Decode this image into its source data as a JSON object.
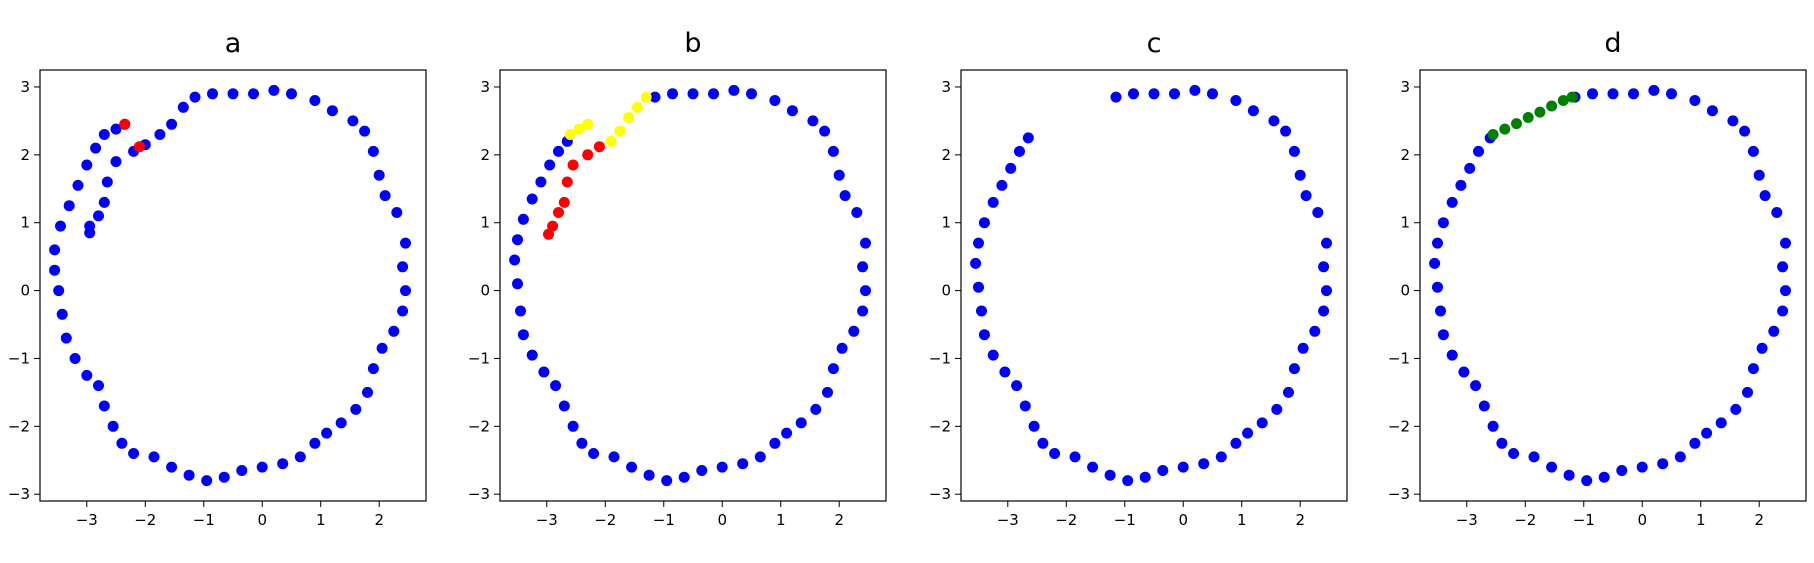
{
  "figure": {
    "background": "#ffffff"
  },
  "colors": {
    "blue": "#0000ff",
    "red": "#ff0000",
    "yellow": "#ffff00",
    "green": "#008000"
  },
  "chart_data": [
    {
      "type": "scatter",
      "title": "a",
      "xlabel": "",
      "ylabel": "",
      "xlim": [
        -3.8,
        2.8
      ],
      "ylim": [
        -3.1,
        3.25
      ],
      "xticks": [
        -3,
        -2,
        -1,
        0,
        1,
        2
      ],
      "yticks": [
        -3,
        -2,
        -1,
        0,
        1,
        2,
        3
      ],
      "series": [
        {
          "color": "#0000ff",
          "points": [
            [
              -2.35,
              2.45
            ],
            [
              -2.5,
              2.38
            ],
            [
              -2.7,
              2.3
            ],
            [
              -2.85,
              2.1
            ],
            [
              -3.0,
              1.85
            ],
            [
              -3.15,
              1.55
            ],
            [
              -3.3,
              1.25
            ],
            [
              -3.45,
              0.95
            ],
            [
              -3.55,
              0.6
            ],
            [
              -3.55,
              0.3
            ],
            [
              -3.48,
              0.0
            ],
            [
              -3.42,
              -0.35
            ],
            [
              -3.35,
              -0.7
            ],
            [
              -3.2,
              -1.0
            ],
            [
              -3.0,
              -1.25
            ],
            [
              -2.8,
              -1.4
            ],
            [
              -2.7,
              -1.7
            ],
            [
              -2.55,
              -2.0
            ],
            [
              -2.4,
              -2.25
            ],
            [
              -2.2,
              -2.4
            ],
            [
              -1.85,
              -2.45
            ],
            [
              -1.55,
              -2.6
            ],
            [
              -1.25,
              -2.72
            ],
            [
              -0.95,
              -2.8
            ],
            [
              -0.65,
              -2.75
            ],
            [
              -0.35,
              -2.65
            ],
            [
              0.0,
              -2.6
            ],
            [
              0.35,
              -2.55
            ],
            [
              0.65,
              -2.45
            ],
            [
              0.9,
              -2.25
            ],
            [
              1.1,
              -2.1
            ],
            [
              1.35,
              -1.95
            ],
            [
              1.6,
              -1.75
            ],
            [
              1.8,
              -1.5
            ],
            [
              1.9,
              -1.15
            ],
            [
              2.05,
              -0.85
            ],
            [
              2.25,
              -0.6
            ],
            [
              2.4,
              -0.3
            ],
            [
              2.45,
              0.0
            ],
            [
              2.4,
              0.35
            ],
            [
              2.45,
              0.7
            ],
            [
              2.3,
              1.15
            ],
            [
              2.1,
              1.4
            ],
            [
              2.0,
              1.7
            ],
            [
              1.9,
              2.05
            ],
            [
              1.75,
              2.35
            ],
            [
              1.55,
              2.5
            ],
            [
              1.2,
              2.65
            ],
            [
              0.9,
              2.8
            ],
            [
              0.5,
              2.9
            ],
            [
              0.2,
              2.95
            ],
            [
              -0.15,
              2.9
            ],
            [
              -0.5,
              2.9
            ],
            [
              -0.85,
              2.9
            ],
            [
              -1.15,
              2.85
            ],
            [
              -1.35,
              2.7
            ],
            [
              -1.55,
              2.45
            ],
            [
              -1.75,
              2.3
            ],
            [
              -2.0,
              2.15
            ],
            [
              -2.2,
              2.05
            ],
            [
              -2.5,
              1.9
            ],
            [
              -2.65,
              1.6
            ],
            [
              -2.7,
              1.3
            ],
            [
              -2.8,
              1.1
            ],
            [
              -2.95,
              0.95
            ],
            [
              -2.95,
              0.85
            ]
          ]
        },
        {
          "color": "#ff0000",
          "points": [
            [
              -2.35,
              2.45
            ],
            [
              -2.1,
              2.12
            ]
          ]
        }
      ]
    },
    {
      "type": "scatter",
      "title": "b",
      "xlabel": "",
      "ylabel": "",
      "xlim": [
        -3.8,
        2.8
      ],
      "ylim": [
        -3.1,
        3.25
      ],
      "xticks": [
        -3,
        -2,
        -1,
        0,
        1,
        2
      ],
      "yticks": [
        -3,
        -2,
        -1,
        0,
        1,
        2,
        3
      ],
      "series": [
        {
          "color": "#0000ff",
          "points": [
            [
              -2.65,
              2.2
            ],
            [
              -2.8,
              2.05
            ],
            [
              -2.95,
              1.85
            ],
            [
              -3.1,
              1.6
            ],
            [
              -3.25,
              1.35
            ],
            [
              -3.4,
              1.05
            ],
            [
              -3.5,
              0.75
            ],
            [
              -3.55,
              0.45
            ],
            [
              -3.5,
              0.1
            ],
            [
              -3.45,
              -0.3
            ],
            [
              -3.4,
              -0.65
            ],
            [
              -3.25,
              -0.95
            ],
            [
              -3.05,
              -1.2
            ],
            [
              -2.85,
              -1.4
            ],
            [
              -2.7,
              -1.7
            ],
            [
              -2.55,
              -2.0
            ],
            [
              -2.4,
              -2.25
            ],
            [
              -2.2,
              -2.4
            ],
            [
              -1.85,
              -2.45
            ],
            [
              -1.55,
              -2.6
            ],
            [
              -1.25,
              -2.72
            ],
            [
              -0.95,
              -2.8
            ],
            [
              -0.65,
              -2.75
            ],
            [
              -0.35,
              -2.65
            ],
            [
              0.0,
              -2.6
            ],
            [
              0.35,
              -2.55
            ],
            [
              0.65,
              -2.45
            ],
            [
              0.9,
              -2.25
            ],
            [
              1.1,
              -2.1
            ],
            [
              1.35,
              -1.95
            ],
            [
              1.6,
              -1.75
            ],
            [
              1.8,
              -1.5
            ],
            [
              1.9,
              -1.15
            ],
            [
              2.05,
              -0.85
            ],
            [
              2.25,
              -0.6
            ],
            [
              2.4,
              -0.3
            ],
            [
              2.45,
              0.0
            ],
            [
              2.4,
              0.35
            ],
            [
              2.45,
              0.7
            ],
            [
              2.3,
              1.15
            ],
            [
              2.1,
              1.4
            ],
            [
              2.0,
              1.7
            ],
            [
              1.9,
              2.05
            ],
            [
              1.75,
              2.35
            ],
            [
              1.55,
              2.5
            ],
            [
              1.2,
              2.65
            ],
            [
              0.9,
              2.8
            ],
            [
              0.5,
              2.9
            ],
            [
              0.2,
              2.95
            ],
            [
              -0.15,
              2.9
            ],
            [
              -0.5,
              2.9
            ],
            [
              -0.85,
              2.9
            ],
            [
              -1.15,
              2.85
            ]
          ]
        },
        {
          "color": "#ffff00",
          "points": [
            [
              -1.3,
              2.85
            ],
            [
              -1.45,
              2.7
            ],
            [
              -1.6,
              2.55
            ],
            [
              -1.75,
              2.35
            ],
            [
              -1.9,
              2.2
            ],
            [
              -2.3,
              2.45
            ],
            [
              -2.45,
              2.38
            ],
            [
              -2.6,
              2.3
            ]
          ]
        },
        {
          "color": "#ff0000",
          "points": [
            [
              -2.1,
              2.12
            ],
            [
              -2.3,
              2.0
            ],
            [
              -2.55,
              1.85
            ],
            [
              -2.65,
              1.6
            ],
            [
              -2.7,
              1.3
            ],
            [
              -2.8,
              1.15
            ],
            [
              -2.9,
              0.95
            ],
            [
              -2.97,
              0.83
            ]
          ]
        }
      ]
    },
    {
      "type": "scatter",
      "title": "c",
      "xlabel": "",
      "ylabel": "",
      "xlim": [
        -3.8,
        2.8
      ],
      "ylim": [
        -3.1,
        3.25
      ],
      "xticks": [
        -3,
        -2,
        -1,
        0,
        1,
        2
      ],
      "yticks": [
        -3,
        -2,
        -1,
        0,
        1,
        2,
        3
      ],
      "series": [
        {
          "color": "#0000ff",
          "points": [
            [
              -2.65,
              2.25
            ],
            [
              -2.8,
              2.05
            ],
            [
              -2.95,
              1.8
            ],
            [
              -3.1,
              1.55
            ],
            [
              -3.25,
              1.3
            ],
            [
              -3.4,
              1.0
            ],
            [
              -3.5,
              0.7
            ],
            [
              -3.55,
              0.4
            ],
            [
              -3.5,
              0.05
            ],
            [
              -3.45,
              -0.3
            ],
            [
              -3.4,
              -0.65
            ],
            [
              -3.25,
              -0.95
            ],
            [
              -3.05,
              -1.2
            ],
            [
              -2.85,
              -1.4
            ],
            [
              -2.7,
              -1.7
            ],
            [
              -2.55,
              -2.0
            ],
            [
              -2.4,
              -2.25
            ],
            [
              -2.2,
              -2.4
            ],
            [
              -1.85,
              -2.45
            ],
            [
              -1.55,
              -2.6
            ],
            [
              -1.25,
              -2.72
            ],
            [
              -0.95,
              -2.8
            ],
            [
              -0.65,
              -2.75
            ],
            [
              -0.35,
              -2.65
            ],
            [
              0.0,
              -2.6
            ],
            [
              0.35,
              -2.55
            ],
            [
              0.65,
              -2.45
            ],
            [
              0.9,
              -2.25
            ],
            [
              1.1,
              -2.1
            ],
            [
              1.35,
              -1.95
            ],
            [
              1.6,
              -1.75
            ],
            [
              1.8,
              -1.5
            ],
            [
              1.9,
              -1.15
            ],
            [
              2.05,
              -0.85
            ],
            [
              2.25,
              -0.6
            ],
            [
              2.4,
              -0.3
            ],
            [
              2.45,
              0.0
            ],
            [
              2.4,
              0.35
            ],
            [
              2.45,
              0.7
            ],
            [
              2.3,
              1.15
            ],
            [
              2.1,
              1.4
            ],
            [
              2.0,
              1.7
            ],
            [
              1.9,
              2.05
            ],
            [
              1.75,
              2.35
            ],
            [
              1.55,
              2.5
            ],
            [
              1.2,
              2.65
            ],
            [
              0.9,
              2.8
            ],
            [
              0.5,
              2.9
            ],
            [
              0.2,
              2.95
            ],
            [
              -0.15,
              2.9
            ],
            [
              -0.5,
              2.9
            ],
            [
              -0.85,
              2.9
            ],
            [
              -1.15,
              2.85
            ]
          ]
        }
      ]
    },
    {
      "type": "scatter",
      "title": "d",
      "xlabel": "",
      "ylabel": "",
      "xlim": [
        -3.8,
        2.8
      ],
      "ylim": [
        -3.1,
        3.25
      ],
      "xticks": [
        -3,
        -2,
        -1,
        0,
        1,
        2
      ],
      "yticks": [
        -3,
        -2,
        -1,
        0,
        1,
        2,
        3
      ],
      "series": [
        {
          "color": "#0000ff",
          "points": [
            [
              -2.6,
              2.25
            ],
            [
              -2.8,
              2.05
            ],
            [
              -2.95,
              1.8
            ],
            [
              -3.1,
              1.55
            ],
            [
              -3.25,
              1.3
            ],
            [
              -3.4,
              1.0
            ],
            [
              -3.5,
              0.7
            ],
            [
              -3.55,
              0.4
            ],
            [
              -3.5,
              0.05
            ],
            [
              -3.45,
              -0.3
            ],
            [
              -3.4,
              -0.65
            ],
            [
              -3.25,
              -0.95
            ],
            [
              -3.05,
              -1.2
            ],
            [
              -2.85,
              -1.4
            ],
            [
              -2.7,
              -1.7
            ],
            [
              -2.55,
              -2.0
            ],
            [
              -2.4,
              -2.25
            ],
            [
              -2.2,
              -2.4
            ],
            [
              -1.85,
              -2.45
            ],
            [
              -1.55,
              -2.6
            ],
            [
              -1.25,
              -2.72
            ],
            [
              -0.95,
              -2.8
            ],
            [
              -0.65,
              -2.75
            ],
            [
              -0.35,
              -2.65
            ],
            [
              0.0,
              -2.6
            ],
            [
              0.35,
              -2.55
            ],
            [
              0.65,
              -2.45
            ],
            [
              0.9,
              -2.25
            ],
            [
              1.1,
              -2.1
            ],
            [
              1.35,
              -1.95
            ],
            [
              1.6,
              -1.75
            ],
            [
              1.8,
              -1.5
            ],
            [
              1.9,
              -1.15
            ],
            [
              2.05,
              -0.85
            ],
            [
              2.25,
              -0.6
            ],
            [
              2.4,
              -0.3
            ],
            [
              2.45,
              0.0
            ],
            [
              2.4,
              0.35
            ],
            [
              2.45,
              0.7
            ],
            [
              2.3,
              1.15
            ],
            [
              2.1,
              1.4
            ],
            [
              2.0,
              1.7
            ],
            [
              1.9,
              2.05
            ],
            [
              1.75,
              2.35
            ],
            [
              1.55,
              2.5
            ],
            [
              1.2,
              2.65
            ],
            [
              0.9,
              2.8
            ],
            [
              0.5,
              2.9
            ],
            [
              0.2,
              2.95
            ],
            [
              -0.15,
              2.9
            ],
            [
              -0.5,
              2.9
            ],
            [
              -0.85,
              2.9
            ],
            [
              -1.15,
              2.85
            ]
          ]
        },
        {
          "color": "#008000",
          "points": [
            [
              -2.55,
              2.3
            ],
            [
              -2.35,
              2.38
            ],
            [
              -2.15,
              2.46
            ],
            [
              -1.95,
              2.55
            ],
            [
              -1.75,
              2.63
            ],
            [
              -1.55,
              2.72
            ],
            [
              -1.35,
              2.8
            ],
            [
              -1.2,
              2.85
            ]
          ]
        }
      ]
    }
  ]
}
